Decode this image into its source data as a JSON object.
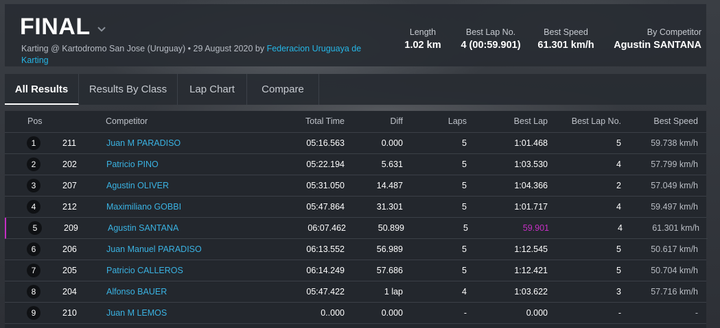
{
  "header": {
    "title": "FINAL",
    "subtitle_prefix": "Karting @ Kartodromo San Jose (Uruguay) • 29 August 2020 by",
    "organizer_link": "Federacion Uruguaya de Karting",
    "stats": {
      "length_label": "Length",
      "length_value": "1.02 km",
      "best_lap_no_label": "Best Lap No.",
      "best_lap_no_value": "4 (00:59.901)",
      "best_speed_label": "Best Speed",
      "best_speed_value": "61.301 km/h",
      "by_competitor_label": "By Competitor",
      "by_competitor_value": "Agustin SANTANA"
    }
  },
  "tabs": [
    "All Results",
    "Results By Class",
    "Lap Chart",
    "Compare"
  ],
  "table": {
    "columns": {
      "pos": "Pos",
      "competitor": "Competitor",
      "total_time": "Total Time",
      "diff": "Diff",
      "laps": "Laps",
      "best_lap": "Best Lap",
      "best_lap_no": "Best Lap No.",
      "best_speed": "Best Speed"
    },
    "rows": [
      {
        "pos": "1",
        "num": "211",
        "name": "Juan M PARADISO",
        "total": "05:16.563",
        "diff": "0.000",
        "laps": "5",
        "best_lap": "1:01.468",
        "best_lap_no": "5",
        "speed": "59.738 km/h"
      },
      {
        "pos": "2",
        "num": "202",
        "name": "Patricio PINO",
        "total": "05:22.194",
        "diff": "5.631",
        "laps": "5",
        "best_lap": "1:03.530",
        "best_lap_no": "4",
        "speed": "57.799 km/h"
      },
      {
        "pos": "3",
        "num": "207",
        "name": "Agustin OLIVER",
        "total": "05:31.050",
        "diff": "14.487",
        "laps": "5",
        "best_lap": "1:04.366",
        "best_lap_no": "2",
        "speed": "57.049 km/h"
      },
      {
        "pos": "4",
        "num": "212",
        "name": "Maximiliano GOBBI",
        "total": "05:47.864",
        "diff": "31.301",
        "laps": "5",
        "best_lap": "1:01.717",
        "best_lap_no": "4",
        "speed": "59.497 km/h"
      },
      {
        "pos": "5",
        "num": "209",
        "name": "Agustin SANTANA",
        "total": "06:07.462",
        "diff": "50.899",
        "laps": "5",
        "best_lap": "59.901",
        "best_lap_no": "4",
        "speed": "61.301 km/h"
      },
      {
        "pos": "6",
        "num": "206",
        "name": "Juan Manuel PARADISO",
        "total": "06:13.552",
        "diff": "56.989",
        "laps": "5",
        "best_lap": "1:12.545",
        "best_lap_no": "5",
        "speed": "50.617 km/h"
      },
      {
        "pos": "7",
        "num": "205",
        "name": "Patricio CALLEROS",
        "total": "06:14.249",
        "diff": "57.686",
        "laps": "5",
        "best_lap": "1:12.421",
        "best_lap_no": "5",
        "speed": "50.704 km/h"
      },
      {
        "pos": "8",
        "num": "204",
        "name": "Alfonso BAUER",
        "total": "05:47.422",
        "diff": "1 lap",
        "laps": "4",
        "best_lap": "1:03.622",
        "best_lap_no": "3",
        "speed": "57.716 km/h"
      },
      {
        "pos": "9",
        "num": "210",
        "name": "Juan M LEMOS",
        "total": "0..000",
        "diff": "0.000",
        "laps": "-",
        "best_lap": "0.000",
        "best_lap_no": "-",
        "speed": "-"
      }
    ]
  },
  "colors": {
    "accent_link": "#25b6e6",
    "fastest_lap": "#c62fc4"
  }
}
